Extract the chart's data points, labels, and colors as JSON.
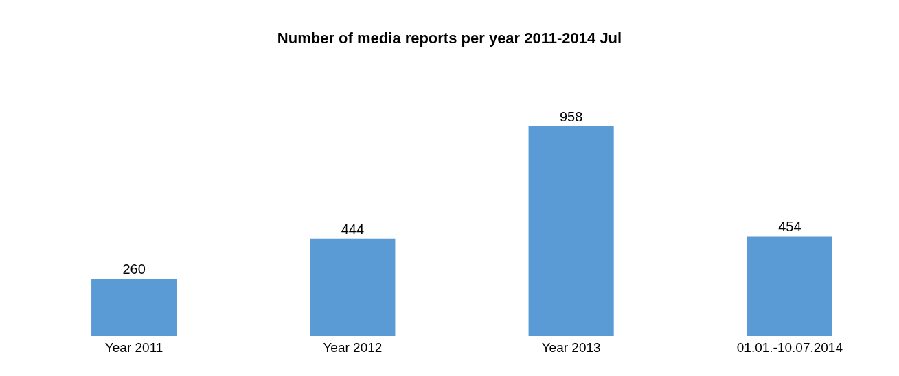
{
  "chart_data": {
    "type": "bar",
    "title": "Number of media reports per year 2011-2014 Jul",
    "categories": [
      "Year 2011",
      "Year 2012",
      "Year 2013",
      "01.01.-10.07.2014"
    ],
    "values": [
      260,
      444,
      958,
      454
    ],
    "color": "#5b9bd5",
    "data_labels": true
  }
}
